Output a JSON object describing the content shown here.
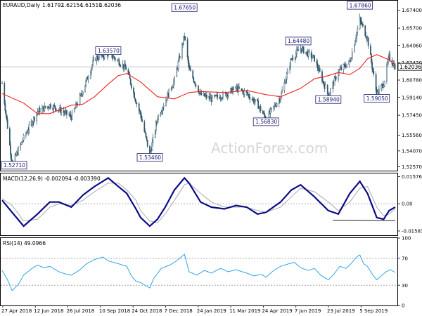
{
  "chart_data": [
    {
      "type": "candlestick",
      "title": "EURAUD,Daily",
      "ohlc": [
        "1.61792",
        "1.62154",
        "1.61510",
        "1.62036"
      ],
      "current_price": 1.62036,
      "current_price_label": "1.62036",
      "watermark": "ActionForex.com",
      "ylim": [
        1.522,
        1.683
      ],
      "y_ticks": [
        1.5257,
        1.5407,
        1.5556,
        1.5745,
        1.5914,
        1.6078,
        1.6242,
        1.6406,
        1.657,
        1.674
      ],
      "y_tick_labels": [
        "1.52570",
        "1.54070",
        "1.55560",
        "1.57450",
        "1.59140",
        "1.60780",
        "1.62420",
        "1.64060",
        "1.65700",
        "1.67400"
      ],
      "x_tick_labels": [
        "27 Apr 2018",
        "12 Jun 2018",
        "26 Jul 2018",
        "10 Sep 2018",
        "24 Oct 2018",
        "7 Dec 2018",
        "24 Jan 2019",
        "11 Mar 2019",
        "24 Apr 2019",
        "7 Jun 2019",
        "23 Jul 2019",
        "5 Sep 2019"
      ],
      "annotations": [
        {
          "label": "1.52710",
          "value": 1.5271,
          "date": "2018-05-10"
        },
        {
          "label": "1.63570",
          "value": 1.6357,
          "date": "2018-09-12"
        },
        {
          "label": "1.53460",
          "value": 1.5346,
          "date": "2018-11-05"
        },
        {
          "label": "1.67650",
          "value": 1.6765,
          "date": "2018-12-20"
        },
        {
          "label": "1.56830",
          "value": 1.5683,
          "date": "2019-04-05"
        },
        {
          "label": "1.64480",
          "value": 1.6448,
          "date": "2019-05-17"
        },
        {
          "label": "1.58940",
          "value": 1.5894,
          "date": "2019-06-25"
        },
        {
          "label": "1.67860",
          "value": 1.6786,
          "date": "2019-08-05"
        },
        {
          "label": "1.59050",
          "value": 1.5905,
          "date": "2019-08-27"
        }
      ],
      "close_path": [
        [
          "2018-04-27",
          1.605
        ],
        [
          "2018-05-10",
          1.528
        ],
        [
          "2018-05-25",
          1.553
        ],
        [
          "2018-06-12",
          1.578
        ],
        [
          "2018-06-28",
          1.584
        ],
        [
          "2018-07-10",
          1.58
        ],
        [
          "2018-07-26",
          1.573
        ],
        [
          "2018-08-10",
          1.598
        ],
        [
          "2018-08-25",
          1.628
        ],
        [
          "2018-09-12",
          1.633
        ],
        [
          "2018-09-25",
          1.626
        ],
        [
          "2018-10-06",
          1.618
        ],
        [
          "2018-10-18",
          1.588
        ],
        [
          "2018-10-24",
          1.575
        ],
        [
          "2018-11-05",
          1.537
        ],
        [
          "2018-11-15",
          1.572
        ],
        [
          "2018-11-25",
          1.588
        ],
        [
          "2018-12-07",
          1.608
        ],
        [
          "2018-12-20",
          1.65
        ],
        [
          "2018-12-26",
          1.618
        ],
        [
          "2019-01-10",
          1.594
        ],
        [
          "2019-01-24",
          1.59
        ],
        [
          "2019-02-10",
          1.594
        ],
        [
          "2019-02-25",
          1.6
        ],
        [
          "2019-03-11",
          1.595
        ],
        [
          "2019-03-25",
          1.585
        ],
        [
          "2019-04-05",
          1.571
        ],
        [
          "2019-04-24",
          1.592
        ],
        [
          "2019-05-08",
          1.628
        ],
        [
          "2019-05-20",
          1.638
        ],
        [
          "2019-06-07",
          1.628
        ],
        [
          "2019-06-25",
          1.593
        ],
        [
          "2019-07-08",
          1.616
        ],
        [
          "2019-07-23",
          1.625
        ],
        [
          "2019-08-05",
          1.665
        ],
        [
          "2019-08-15",
          1.647
        ],
        [
          "2019-08-27",
          1.594
        ],
        [
          "2019-09-05",
          1.605
        ],
        [
          "2019-09-12",
          1.63
        ],
        [
          "2019-09-20",
          1.62
        ]
      ],
      "moving_average": [
        [
          "2018-04-27",
          1.595
        ],
        [
          "2018-05-25",
          1.586
        ],
        [
          "2018-06-12",
          1.576
        ],
        [
          "2018-06-28",
          1.576
        ],
        [
          "2018-07-26",
          1.584
        ],
        [
          "2018-08-10",
          1.585
        ],
        [
          "2018-08-25",
          1.592
        ],
        [
          "2018-09-12",
          1.604
        ],
        [
          "2018-09-25",
          1.612
        ],
        [
          "2018-10-06",
          1.614
        ],
        [
          "2018-10-24",
          1.606
        ],
        [
          "2018-11-15",
          1.592
        ],
        [
          "2018-12-07",
          1.59
        ],
        [
          "2018-12-26",
          1.596
        ],
        [
          "2019-01-10",
          1.597
        ],
        [
          "2019-02-10",
          1.596
        ],
        [
          "2019-03-11",
          1.598
        ],
        [
          "2019-04-05",
          1.594
        ],
        [
          "2019-04-24",
          1.592
        ],
        [
          "2019-05-20",
          1.6
        ],
        [
          "2019-06-07",
          1.609
        ],
        [
          "2019-06-25",
          1.612
        ],
        [
          "2019-07-08",
          1.615
        ],
        [
          "2019-07-23",
          1.613
        ],
        [
          "2019-08-05",
          1.619
        ],
        [
          "2019-08-15",
          1.628
        ],
        [
          "2019-08-27",
          1.632
        ],
        [
          "2019-09-12",
          1.627
        ],
        [
          "2019-09-20",
          1.622
        ]
      ]
    },
    {
      "type": "line",
      "title": "MACD(12,26,9) -0.002094 -0.003390",
      "ylim": [
        -0.0183,
        0.0176
      ],
      "y_ticks": [
        0.015762,
        0.0,
        -0.015834
      ],
      "y_tick_labels": [
        "0.015762",
        "0.00",
        "-0.015834"
      ],
      "series": [
        {
          "values": [
            [
              "2018-04-27",
              0.002
            ],
            [
              "2018-05-10",
              -0.005
            ],
            [
              "2018-05-25",
              -0.013
            ],
            [
              "2018-06-12",
              -0.006
            ],
            [
              "2018-06-28",
              0.001
            ],
            [
              "2018-07-10",
              0.001
            ],
            [
              "2018-07-26",
              -0.002
            ],
            [
              "2018-08-10",
              0.005
            ],
            [
              "2018-08-25",
              0.01
            ],
            [
              "2018-09-12",
              0.015
            ],
            [
              "2018-09-25",
              0.01
            ],
            [
              "2018-10-06",
              0.006
            ],
            [
              "2018-10-18",
              -0.003
            ],
            [
              "2018-10-24",
              -0.008
            ],
            [
              "2018-11-05",
              -0.013
            ],
            [
              "2018-11-15",
              -0.009
            ],
            [
              "2018-11-25",
              -0.002
            ],
            [
              "2018-12-07",
              0.008
            ],
            [
              "2018-12-20",
              0.015
            ],
            [
              "2018-12-26",
              0.012
            ],
            [
              "2019-01-10",
              0.001
            ],
            [
              "2019-01-24",
              -0.002
            ],
            [
              "2019-02-10",
              -0.003
            ],
            [
              "2019-02-25",
              -0.001
            ],
            [
              "2019-03-11",
              -0.002
            ],
            [
              "2019-03-25",
              -0.006
            ],
            [
              "2019-04-05",
              -0.005
            ],
            [
              "2019-04-24",
              0.001
            ],
            [
              "2019-05-08",
              0.008
            ],
            [
              "2019-05-20",
              0.011
            ],
            [
              "2019-06-07",
              0.004
            ],
            [
              "2019-06-25",
              -0.004
            ],
            [
              "2019-07-08",
              -0.006
            ],
            [
              "2019-07-23",
              0.006
            ],
            [
              "2019-08-05",
              0.013
            ],
            [
              "2019-08-15",
              0.006
            ],
            [
              "2019-08-27",
              -0.008
            ],
            [
              "2019-09-05",
              -0.009
            ],
            [
              "2019-09-12",
              -0.004
            ],
            [
              "2019-09-20",
              -0.002
            ]
          ]
        },
        {
          "values": [
            [
              "2018-04-27",
              0.003
            ],
            [
              "2018-05-10",
              -0.001
            ],
            [
              "2018-05-25",
              -0.01
            ],
            [
              "2018-06-12",
              -0.009
            ],
            [
              "2018-06-28",
              -0.002
            ],
            [
              "2018-07-10",
              0.0
            ],
            [
              "2018-07-26",
              -0.001
            ],
            [
              "2018-08-10",
              0.002
            ],
            [
              "2018-08-25",
              0.007
            ],
            [
              "2018-09-12",
              0.012
            ],
            [
              "2018-09-25",
              0.012
            ],
            [
              "2018-10-06",
              0.008
            ],
            [
              "2018-10-18",
              0.002
            ],
            [
              "2018-10-24",
              -0.004
            ],
            [
              "2018-11-05",
              -0.01
            ],
            [
              "2018-11-15",
              -0.011
            ],
            [
              "2018-11-25",
              -0.006
            ],
            [
              "2018-12-07",
              0.002
            ],
            [
              "2018-12-20",
              0.011
            ],
            [
              "2018-12-26",
              0.012
            ],
            [
              "2019-01-10",
              0.006
            ],
            [
              "2019-01-24",
              0.001
            ],
            [
              "2019-02-10",
              -0.002
            ],
            [
              "2019-02-25",
              -0.002
            ],
            [
              "2019-03-11",
              -0.002
            ],
            [
              "2019-03-25",
              -0.004
            ],
            [
              "2019-04-05",
              -0.005
            ],
            [
              "2019-04-24",
              -0.002
            ],
            [
              "2019-05-08",
              0.004
            ],
            [
              "2019-05-20",
              0.009
            ],
            [
              "2019-06-07",
              0.007
            ],
            [
              "2019-06-25",
              0.001
            ],
            [
              "2019-07-08",
              -0.004
            ],
            [
              "2019-07-23",
              0.001
            ],
            [
              "2019-08-05",
              0.009
            ],
            [
              "2019-08-15",
              0.01
            ],
            [
              "2019-08-27",
              -0.002
            ],
            [
              "2019-09-05",
              -0.007
            ],
            [
              "2019-09-12",
              -0.006
            ],
            [
              "2019-09-20",
              -0.003
            ]
          ]
        }
      ],
      "trendline": [
        [
          "2019-07-01",
          -0.0095
        ],
        [
          "2019-09-20",
          -0.0098
        ]
      ]
    },
    {
      "type": "line",
      "title": "RSI(14) 49.0966",
      "ylim": [
        0,
        100
      ],
      "y_ticks": [
        100,
        70,
        30,
        0
      ],
      "y_tick_labels": [
        "100",
        "70",
        "30",
        "0"
      ],
      "series": [
        {
          "values": [
            [
              "2018-04-27",
              52
            ],
            [
              "2018-05-04",
              38
            ],
            [
              "2018-05-10",
              22
            ],
            [
              "2018-05-18",
              31
            ],
            [
              "2018-05-25",
              45
            ],
            [
              "2018-06-05",
              55
            ],
            [
              "2018-06-12",
              60
            ],
            [
              "2018-06-20",
              56
            ],
            [
              "2018-06-28",
              58
            ],
            [
              "2018-07-10",
              50
            ],
            [
              "2018-07-20",
              46
            ],
            [
              "2018-07-26",
              45
            ],
            [
              "2018-08-05",
              52
            ],
            [
              "2018-08-15",
              62
            ],
            [
              "2018-08-25",
              68
            ],
            [
              "2018-09-05",
              72
            ],
            [
              "2018-09-12",
              66
            ],
            [
              "2018-09-25",
              62
            ],
            [
              "2018-10-06",
              58
            ],
            [
              "2018-10-12",
              44
            ],
            [
              "2018-10-18",
              36
            ],
            [
              "2018-10-24",
              34
            ],
            [
              "2018-11-05",
              26
            ],
            [
              "2018-11-10",
              40
            ],
            [
              "2018-11-20",
              55
            ],
            [
              "2018-12-01",
              60
            ],
            [
              "2018-12-07",
              64
            ],
            [
              "2018-12-14",
              70
            ],
            [
              "2018-12-20",
              76
            ],
            [
              "2018-12-26",
              50
            ],
            [
              "2019-01-05",
              45
            ],
            [
              "2019-01-15",
              52
            ],
            [
              "2019-01-24",
              48
            ],
            [
              "2019-02-05",
              55
            ],
            [
              "2019-02-15",
              50
            ],
            [
              "2019-02-25",
              53
            ],
            [
              "2019-03-05",
              50
            ],
            [
              "2019-03-11",
              48
            ],
            [
              "2019-03-20",
              44
            ],
            [
              "2019-03-30",
              46
            ],
            [
              "2019-04-05",
              42
            ],
            [
              "2019-04-15",
              52
            ],
            [
              "2019-04-24",
              58
            ],
            [
              "2019-05-05",
              62
            ],
            [
              "2019-05-12",
              64
            ],
            [
              "2019-05-20",
              56
            ],
            [
              "2019-05-30",
              52
            ],
            [
              "2019-06-07",
              55
            ],
            [
              "2019-06-15",
              45
            ],
            [
              "2019-06-25",
              38
            ],
            [
              "2019-07-02",
              46
            ],
            [
              "2019-07-10",
              58
            ],
            [
              "2019-07-18",
              55
            ],
            [
              "2019-07-23",
              60
            ],
            [
              "2019-08-01",
              72
            ],
            [
              "2019-08-05",
              75
            ],
            [
              "2019-08-10",
              62
            ],
            [
              "2019-08-15",
              58
            ],
            [
              "2019-08-22",
              45
            ],
            [
              "2019-08-27",
              38
            ],
            [
              "2019-09-02",
              44
            ],
            [
              "2019-09-08",
              50
            ],
            [
              "2019-09-14",
              53
            ],
            [
              "2019-09-20",
              49
            ]
          ]
        }
      ]
    }
  ]
}
